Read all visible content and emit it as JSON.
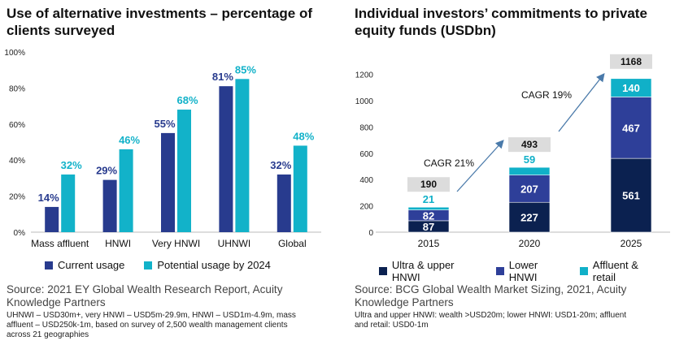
{
  "left": {
    "title_line1": "Use of alternative investments – percentage of",
    "title_line2": "clients surveyed",
    "legend": [
      "Current usage",
      "Potential usage by 2024"
    ],
    "source_line1": "Source: 2021 EY Global Wealth Research Report, Acuity",
    "source_line2": "Knowledge Partners",
    "note_line1": "UHNWI – USD30m+, very HNWI – USD5m-29.9m, HNWI – USD1m-4.9m, mass",
    "note_line2": "affluent – USD250k-1m, based on survey of 2,500 wealth management clients",
    "note_line3": "across 21 geographies"
  },
  "right": {
    "title_line1": "Individual investors’ commitments to private",
    "title_line2": "equity funds (USDbn)",
    "legend": [
      "Ultra & upper HNWI",
      "Lower HNWI",
      "Affluent & retail"
    ],
    "source_line1": "Source: BCG Global Wealth Market Sizing, 2021, Acuity",
    "source_line2": "Knowledge Partners",
    "note_line1": "Ultra and upper HNWI: wealth >USD20m; lower HNWI: USD1-20m; affluent",
    "note_line2": "and retail: USD0-1m"
  },
  "colors": {
    "dark_blue": "#283b8e",
    "cyan": "#12b2c9",
    "navy": "#0b2150",
    "medium_blue": "#2e3f99",
    "teal": "#10b0c8",
    "total_box": "#dcdcdc",
    "arrow": "#4a7aaa"
  },
  "chart_data": [
    {
      "type": "bar",
      "categories": [
        "Mass affluent",
        "HNWI",
        "Very HNWI",
        "UHNWI",
        "Global"
      ],
      "series": [
        {
          "name": "Current usage",
          "values": [
            14,
            29,
            55,
            81,
            32
          ]
        },
        {
          "name": "Potential usage by 2024",
          "values": [
            32,
            46,
            68,
            85,
            48
          ]
        }
      ],
      "value_labels": [
        [
          "14%",
          "29%",
          "55%",
          "81%",
          "32%"
        ],
        [
          "32%",
          "46%",
          "68%",
          "85%",
          "48%"
        ]
      ],
      "yticks": [
        "0%",
        "20%",
        "40%",
        "60%",
        "80%",
        "100%"
      ],
      "ylim": [
        0,
        100
      ],
      "legend_position": "bottom"
    },
    {
      "type": "bar",
      "stacked": true,
      "categories": [
        "2015",
        "2020",
        "2025"
      ],
      "series": [
        {
          "name": "Ultra & upper HNWI",
          "values": [
            87,
            227,
            561
          ]
        },
        {
          "name": "Lower HNWI",
          "values": [
            82,
            207,
            467
          ]
        },
        {
          "name": "Affluent & retail",
          "values": [
            21,
            59,
            140
          ]
        }
      ],
      "totals": [
        190,
        493,
        1168
      ],
      "yticks": [
        "0",
        "200",
        "400",
        "600",
        "800",
        "1000",
        "1200"
      ],
      "ylim": [
        0,
        1300
      ],
      "annotations": [
        "CAGR 21%",
        "CAGR 19%"
      ],
      "legend_position": "bottom"
    }
  ]
}
